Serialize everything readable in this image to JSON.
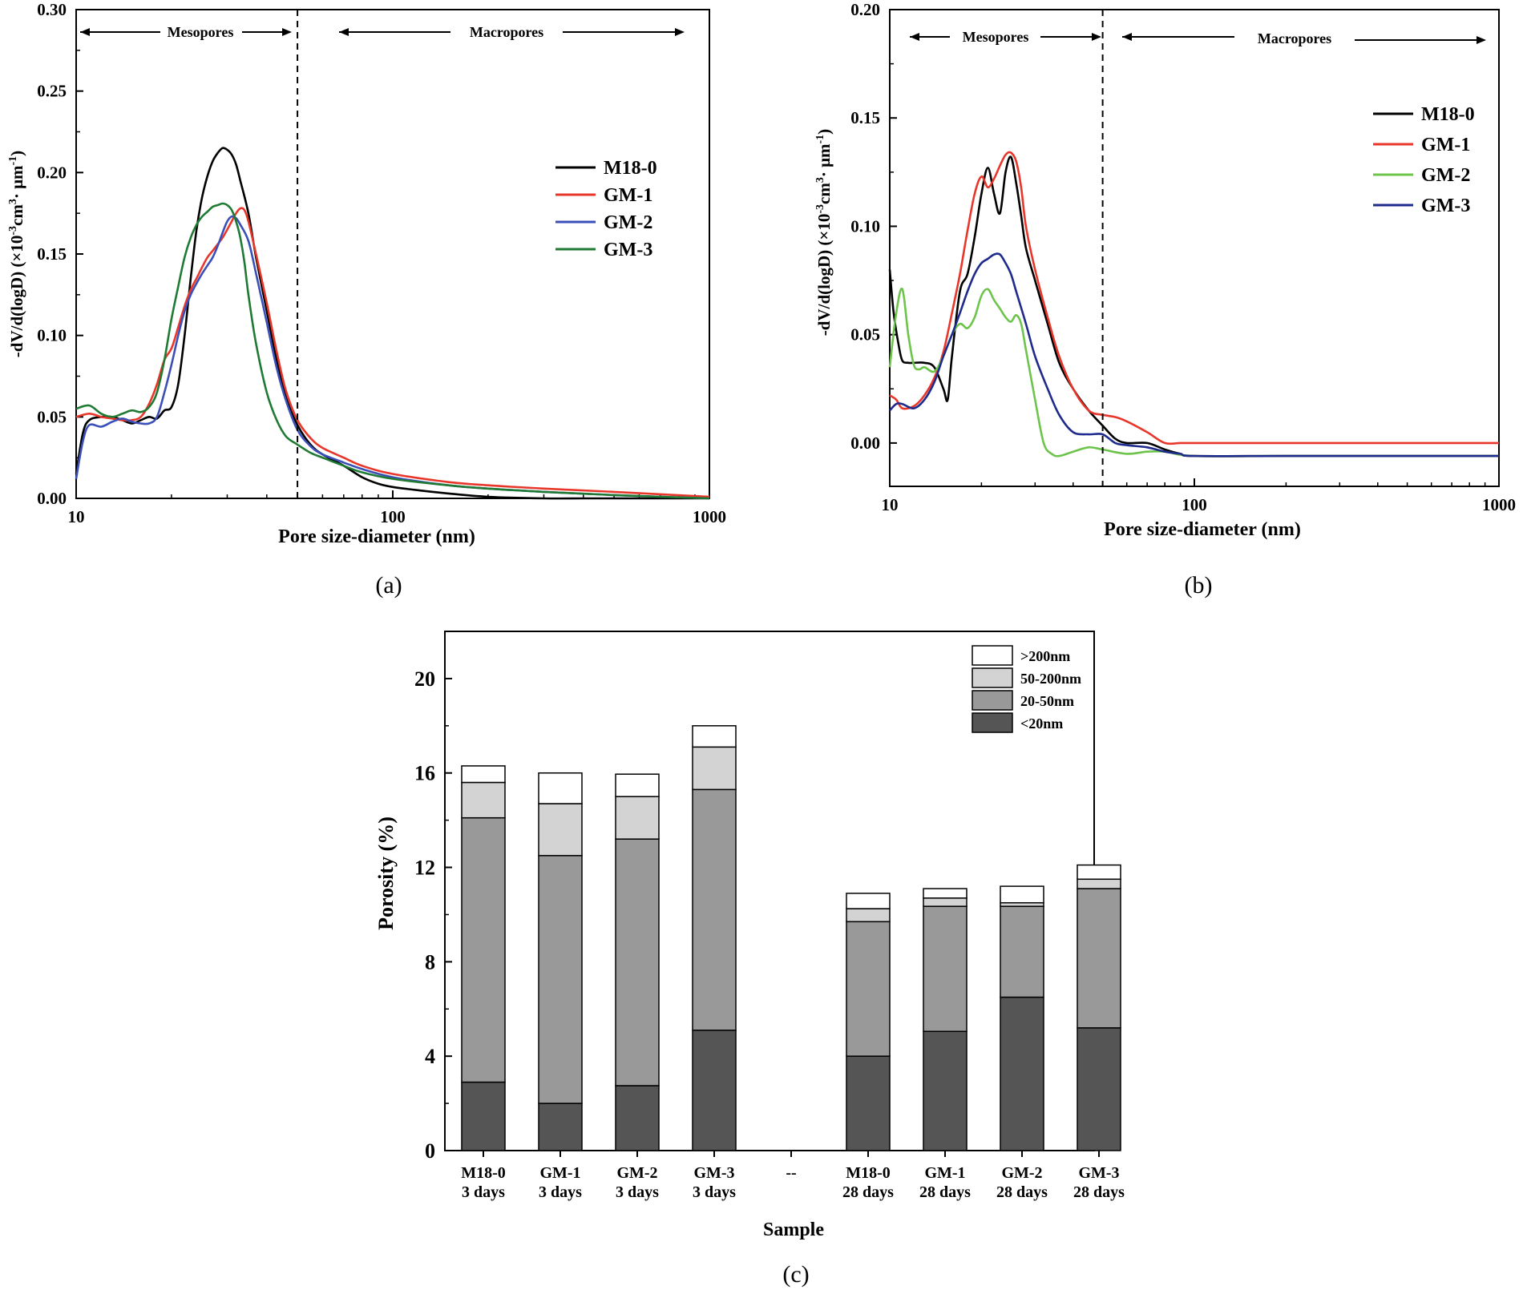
{
  "chart_data": [
    {
      "id": "a",
      "type": "line",
      "panel_label": "(a)",
      "xlabel": "Pore size-diameter (nm)",
      "ylabel_main": "-dV/d(logD) (×10",
      "ylabel_sup1": "-3",
      "ylabel_mid": "cm",
      "ylabel_sup2": "3",
      "ylabel_mid2": "· μm",
      "ylabel_sup3": "-1",
      "ylabel_end": ")",
      "xscale": "log",
      "xlim": [
        10,
        1000
      ],
      "ylim": [
        0,
        0.3
      ],
      "xticks": [
        {
          "v": 10,
          "label": "10"
        },
        {
          "v": 100,
          "label": "100"
        },
        {
          "v": 1000,
          "label": "1000"
        }
      ],
      "yticks": [
        {
          "v": 0,
          "label": "0.00"
        },
        {
          "v": 0.05,
          "label": "0.05"
        },
        {
          "v": 0.1,
          "label": "0.10"
        },
        {
          "v": 0.15,
          "label": "0.15"
        },
        {
          "v": 0.2,
          "label": "0.20"
        },
        {
          "v": 0.25,
          "label": "0.25"
        },
        {
          "v": 0.3,
          "label": "0.30"
        }
      ],
      "divider_x": 50,
      "region_labels": {
        "left": "Mesopores",
        "right": "Macropores"
      },
      "legend_position": "right-middle",
      "series": [
        {
          "name": "M18-0",
          "color": "#000000",
          "x": [
            10,
            10.5,
            11,
            12,
            13,
            14,
            15,
            16,
            17,
            18,
            19,
            20,
            21,
            22,
            23,
            24,
            25,
            26,
            27,
            28,
            29,
            30,
            31,
            32,
            33,
            35,
            37,
            40,
            43,
            46,
            50,
            55,
            60,
            70,
            80,
            90,
            100,
            120,
            150,
            200,
            300,
            400,
            500,
            700,
            1000
          ],
          "y": [
            0.015,
            0.04,
            0.048,
            0.05,
            0.05,
            0.048,
            0.046,
            0.048,
            0.05,
            0.049,
            0.054,
            0.056,
            0.07,
            0.1,
            0.135,
            0.165,
            0.185,
            0.198,
            0.207,
            0.212,
            0.215,
            0.214,
            0.211,
            0.205,
            0.195,
            0.175,
            0.148,
            0.115,
            0.085,
            0.062,
            0.045,
            0.033,
            0.027,
            0.02,
            0.013,
            0.009,
            0.007,
            0.005,
            0.003,
            0.001,
            0.0,
            0.0,
            0.0,
            0.0,
            0.0
          ]
        },
        {
          "name": "GM-1",
          "color": "#e8362a",
          "x": [
            10,
            11,
            12,
            13,
            14,
            15,
            16,
            17,
            18,
            19,
            20,
            21,
            22,
            23,
            24,
            25,
            26,
            27,
            28,
            29,
            30,
            31,
            32,
            33,
            34,
            35,
            37,
            40,
            43,
            46,
            50,
            55,
            60,
            70,
            80,
            100,
            150,
            200,
            300,
            500,
            1000
          ],
          "y": [
            0.05,
            0.052,
            0.05,
            0.049,
            0.048,
            0.048,
            0.05,
            0.058,
            0.07,
            0.085,
            0.092,
            0.105,
            0.118,
            0.128,
            0.135,
            0.142,
            0.148,
            0.152,
            0.156,
            0.16,
            0.165,
            0.17,
            0.175,
            0.178,
            0.177,
            0.17,
            0.15,
            0.12,
            0.09,
            0.066,
            0.048,
            0.037,
            0.031,
            0.025,
            0.02,
            0.015,
            0.01,
            0.008,
            0.006,
            0.004,
            0.001
          ]
        },
        {
          "name": "GM-2",
          "color": "#3b4fb8",
          "x": [
            10,
            10.5,
            11,
            12,
            13,
            14,
            15,
            16,
            17,
            18,
            19,
            20,
            21,
            22,
            23,
            24,
            25,
            26,
            27,
            28,
            29,
            30,
            31,
            32,
            33,
            35,
            37,
            40,
            43,
            46,
            50,
            55,
            60,
            70,
            80,
            100,
            150,
            200,
            300,
            500,
            1000
          ],
          "y": [
            0.012,
            0.035,
            0.045,
            0.044,
            0.047,
            0.049,
            0.047,
            0.046,
            0.046,
            0.05,
            0.065,
            0.082,
            0.1,
            0.115,
            0.125,
            0.132,
            0.138,
            0.143,
            0.148,
            0.155,
            0.163,
            0.17,
            0.173,
            0.172,
            0.168,
            0.158,
            0.138,
            0.108,
            0.08,
            0.06,
            0.042,
            0.032,
            0.027,
            0.022,
            0.018,
            0.013,
            0.008,
            0.006,
            0.004,
            0.002,
            0.0
          ]
        },
        {
          "name": "GM-3",
          "color": "#1f7a33",
          "x": [
            10,
            11,
            12,
            13,
            14,
            15,
            16,
            17,
            18,
            19,
            20,
            21,
            22,
            23,
            24,
            25,
            26,
            27,
            28,
            29,
            30,
            31,
            32,
            33,
            34,
            35,
            37,
            40,
            43,
            46,
            50,
            55,
            60,
            70,
            80,
            100,
            150,
            200,
            300,
            500,
            1000
          ],
          "y": [
            0.055,
            0.057,
            0.052,
            0.05,
            0.052,
            0.054,
            0.053,
            0.056,
            0.065,
            0.085,
            0.11,
            0.13,
            0.148,
            0.16,
            0.168,
            0.173,
            0.176,
            0.179,
            0.18,
            0.181,
            0.18,
            0.177,
            0.17,
            0.16,
            0.145,
            0.125,
            0.095,
            0.065,
            0.048,
            0.038,
            0.033,
            0.028,
            0.025,
            0.02,
            0.016,
            0.012,
            0.008,
            0.006,
            0.004,
            0.002,
            0.0
          ]
        }
      ]
    },
    {
      "id": "b",
      "type": "line",
      "panel_label": "(b)",
      "xlabel": "Pore size-diameter (nm)",
      "ylabel_main": "-dV/d(logD) (×10",
      "ylabel_sup1": "-3",
      "ylabel_mid": "cm",
      "ylabel_sup2": "3",
      "ylabel_mid2": "· μm",
      "ylabel_sup3": "-1",
      "ylabel_end": ")",
      "xscale": "log",
      "xlim": [
        10,
        1000
      ],
      "ylim": [
        -0.02,
        0.2
      ],
      "xticks": [
        {
          "v": 10,
          "label": "10"
        },
        {
          "v": 100,
          "label": "100"
        },
        {
          "v": 1000,
          "label": "1000"
        }
      ],
      "yticks": [
        {
          "v": 0,
          "label": "0.00"
        },
        {
          "v": 0.05,
          "label": "0.05"
        },
        {
          "v": 0.1,
          "label": "0.10"
        },
        {
          "v": 0.15,
          "label": "0.15"
        },
        {
          "v": 0.2,
          "label": "0.20"
        }
      ],
      "divider_x": 50,
      "region_labels": {
        "left": "Mesopores",
        "right": "Macropores"
      },
      "legend_position": "top-right",
      "series": [
        {
          "name": "M18-0",
          "color": "#000000",
          "x": [
            10,
            10.3,
            10.7,
            11,
            11.5,
            12,
            13,
            14,
            15,
            15.5,
            16,
            17,
            18,
            19,
            20,
            21,
            22,
            23,
            24,
            25,
            26,
            27,
            28,
            30,
            33,
            36,
            40,
            45,
            50,
            55,
            60,
            70,
            80,
            90,
            100,
            200,
            500,
            1000
          ],
          "y": [
            0.08,
            0.06,
            0.045,
            0.038,
            0.037,
            0.037,
            0.037,
            0.035,
            0.025,
            0.02,
            0.04,
            0.07,
            0.078,
            0.095,
            0.115,
            0.127,
            0.115,
            0.106,
            0.125,
            0.132,
            0.12,
            0.105,
            0.09,
            0.075,
            0.055,
            0.037,
            0.025,
            0.015,
            0.008,
            0.002,
            0.0,
            0.0,
            -0.003,
            -0.005,
            -0.006,
            -0.006,
            -0.006,
            -0.006
          ]
        },
        {
          "name": "GM-1",
          "color": "#e8362a",
          "x": [
            10,
            10.5,
            11,
            12,
            13,
            14,
            15,
            16,
            17,
            18,
            19,
            20,
            21,
            22,
            23,
            24,
            25,
            26,
            27,
            28,
            30,
            33,
            36,
            40,
            45,
            50,
            55,
            60,
            70,
            80,
            90,
            100,
            200,
            500,
            1000
          ],
          "y": [
            0.022,
            0.02,
            0.016,
            0.017,
            0.022,
            0.03,
            0.042,
            0.06,
            0.078,
            0.098,
            0.115,
            0.123,
            0.118,
            0.122,
            0.128,
            0.133,
            0.134,
            0.13,
            0.118,
            0.1,
            0.08,
            0.058,
            0.04,
            0.025,
            0.015,
            0.013,
            0.012,
            0.01,
            0.005,
            0.0,
            0.0,
            0.0,
            0.0,
            0.0,
            0.0
          ]
        },
        {
          "name": "GM-2",
          "color": "#6dc44a",
          "x": [
            10,
            10.5,
            11,
            11.5,
            12,
            12.5,
            13,
            14,
            15,
            16,
            17,
            18,
            19,
            20,
            21,
            22,
            23,
            24,
            25,
            26,
            27,
            28,
            30,
            32,
            34,
            36,
            40,
            45,
            50,
            60,
            70,
            80,
            100,
            200,
            500,
            1000
          ],
          "y": [
            0.035,
            0.06,
            0.071,
            0.05,
            0.036,
            0.034,
            0.035,
            0.033,
            0.04,
            0.05,
            0.055,
            0.053,
            0.058,
            0.068,
            0.071,
            0.066,
            0.062,
            0.058,
            0.056,
            0.059,
            0.055,
            0.043,
            0.02,
            0.0,
            -0.005,
            -0.006,
            -0.004,
            -0.002,
            -0.003,
            -0.005,
            -0.004,
            -0.004,
            -0.006,
            -0.006,
            -0.006,
            -0.006
          ]
        },
        {
          "name": "GM-3",
          "color": "#1e2a8c",
          "x": [
            10,
            10.5,
            11,
            12,
            13,
            14,
            15,
            16,
            17,
            18,
            19,
            20,
            21,
            22,
            23,
            24,
            25,
            26,
            28,
            30,
            33,
            36,
            40,
            45,
            50,
            55,
            60,
            70,
            80,
            90,
            100,
            200,
            500,
            1000
          ],
          "y": [
            0.015,
            0.018,
            0.018,
            0.016,
            0.02,
            0.028,
            0.04,
            0.05,
            0.06,
            0.07,
            0.078,
            0.083,
            0.085,
            0.087,
            0.087,
            0.083,
            0.078,
            0.07,
            0.055,
            0.04,
            0.025,
            0.013,
            0.005,
            0.004,
            0.004,
            0.0,
            -0.001,
            -0.002,
            -0.004,
            -0.005,
            -0.006,
            -0.006,
            -0.006,
            -0.006
          ]
        }
      ]
    },
    {
      "id": "c",
      "type": "bar",
      "stacked": true,
      "panel_label": "(c)",
      "xlabel": "Sample",
      "ylabel": "Porosity (%)",
      "ylim": [
        0,
        22
      ],
      "yticks": [
        {
          "v": 0,
          "label": "0"
        },
        {
          "v": 4,
          "label": "4"
        },
        {
          "v": 8,
          "label": "8"
        },
        {
          "v": 12,
          "label": "12"
        },
        {
          "v": 16,
          "label": "16"
        },
        {
          "v": 20,
          "label": "20"
        }
      ],
      "categories": [
        {
          "line1": "M18-0",
          "line2": "3 days"
        },
        {
          "line1": "GM-1",
          "line2": "3 days"
        },
        {
          "line1": "GM-2",
          "line2": "3 days"
        },
        {
          "line1": "GM-3",
          "line2": "3 days"
        },
        {
          "line1": "--",
          "line2": ""
        },
        {
          "line1": "M18-0",
          "line2": "28 days"
        },
        {
          "line1": "GM-1",
          "line2": "28 days"
        },
        {
          "line1": "GM-2",
          "line2": "28 days"
        },
        {
          "line1": "GM-3",
          "line2": "28 days"
        }
      ],
      "legend_position": "top-right",
      "series": [
        {
          "name": "<20nm",
          "color": "#555555",
          "values": [
            2.9,
            2.0,
            2.75,
            5.1,
            0,
            4.0,
            5.05,
            6.5,
            5.2
          ]
        },
        {
          "name": "20-50nm",
          "color": "#999999",
          "values": [
            11.2,
            10.5,
            10.45,
            10.2,
            0,
            5.7,
            5.3,
            3.85,
            5.9
          ]
        },
        {
          "name": "50-200nm",
          "color": "#d3d3d3",
          "values": [
            1.5,
            2.2,
            1.8,
            1.8,
            0,
            0.55,
            0.35,
            0.15,
            0.4
          ]
        },
        {
          "name": ">200nm",
          "color": "#ffffff",
          "values": [
            0.7,
            1.3,
            0.95,
            0.9,
            0,
            0.65,
            0.4,
            0.7,
            0.6
          ]
        }
      ]
    }
  ]
}
